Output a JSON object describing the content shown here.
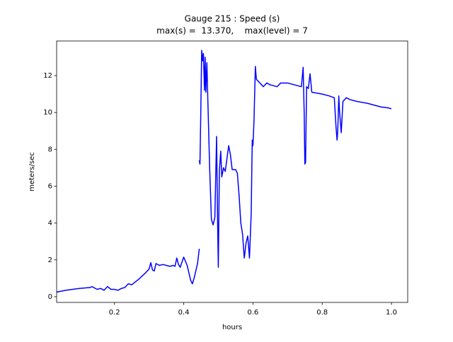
{
  "chart_data": {
    "type": "line",
    "title": "Gauge 215 : Speed (s)",
    "subtitle": "max(s) =  13.370,    max(level) = 7",
    "xlabel": "hours",
    "ylabel": "meters/sec",
    "color": "#0000ff",
    "xlim": [
      0.033,
      1.047
    ],
    "ylim": [
      -0.31,
      13.88
    ],
    "xticks": [
      0.2,
      0.4,
      0.6,
      0.8,
      {
        "value": 1,
        "label": "1.0"
      }
    ],
    "yticks": [
      0,
      2,
      4,
      6,
      8,
      10,
      12
    ],
    "grid": false,
    "x": [
      0.033,
      0.06,
      0.1,
      0.13,
      0.135,
      0.15,
      0.16,
      0.17,
      0.18,
      0.19,
      0.2,
      0.21,
      0.22,
      0.23,
      0.24,
      0.25,
      0.27,
      0.29,
      0.3,
      0.305,
      0.31,
      0.315,
      0.32,
      0.33,
      0.34,
      0.36,
      0.37,
      0.375,
      0.38,
      0.385,
      0.39,
      0.4,
      0.41,
      0.42,
      0.425,
      0.43,
      0.44,
      0.445,
      null,
      0.445,
      0.447,
      0.449,
      0.452,
      0.455,
      0.457,
      0.46,
      0.462,
      0.464,
      0.467,
      0.47,
      0.475,
      0.48,
      0.485,
      0.49,
      0.495,
      0.498,
      0.5,
      0.503,
      0.507,
      0.51,
      0.515,
      0.52,
      0.525,
      0.53,
      0.535,
      0.54,
      0.55,
      0.555,
      0.56,
      0.565,
      0.57,
      0.575,
      0.58,
      0.585,
      0.59,
      0.595,
      0.598,
      0.6,
      0.603,
      0.607,
      0.61,
      0.62,
      0.63,
      0.64,
      0.65,
      0.67,
      0.68,
      0.7,
      0.72,
      0.74,
      0.745,
      0.748,
      0.75,
      0.752,
      0.755,
      0.76,
      0.765,
      0.77,
      0.8,
      0.82,
      0.835,
      0.84,
      0.843,
      0.845,
      0.848,
      0.85,
      0.855,
      0.86,
      0.87,
      0.88,
      0.9,
      0.93,
      0.95,
      0.97,
      0.99,
      1.0
    ],
    "values": [
      0.25,
      0.35,
      0.45,
      0.5,
      0.55,
      0.4,
      0.45,
      0.35,
      0.55,
      0.4,
      0.4,
      0.35,
      0.45,
      0.5,
      0.7,
      0.65,
      0.95,
      1.3,
      1.5,
      1.85,
      1.45,
      1.4,
      1.8,
      1.7,
      1.75,
      1.65,
      1.7,
      1.65,
      2.1,
      1.75,
      1.6,
      2.15,
      1.7,
      0.9,
      0.7,
      1.0,
      1.8,
      2.6,
      null,
      7.4,
      7.2,
      9.5,
      13.37,
      12.8,
      13.2,
      11.2,
      13.0,
      11.1,
      12.7,
      10.5,
      7.0,
      4.2,
      3.9,
      4.3,
      8.7,
      4.0,
      1.6,
      6.8,
      7.9,
      6.5,
      7.0,
      6.8,
      7.5,
      8.2,
      7.7,
      6.9,
      6.9,
      6.7,
      5.5,
      4.0,
      3.4,
      2.1,
      2.9,
      3.3,
      2.1,
      4.5,
      8.5,
      8.2,
      9.5,
      12.5,
      11.8,
      11.6,
      11.4,
      11.6,
      11.5,
      11.4,
      11.6,
      11.6,
      11.5,
      11.4,
      12.45,
      10,
      7.2,
      7.3,
      11.4,
      11.3,
      12.1,
      11.1,
      11.0,
      10.9,
      10.8,
      9.2,
      8.5,
      9.0,
      10.9,
      10.1,
      8.9,
      10.6,
      10.8,
      10.7,
      10.6,
      10.5,
      10.4,
      10.3,
      10.25,
      10.2
    ]
  }
}
